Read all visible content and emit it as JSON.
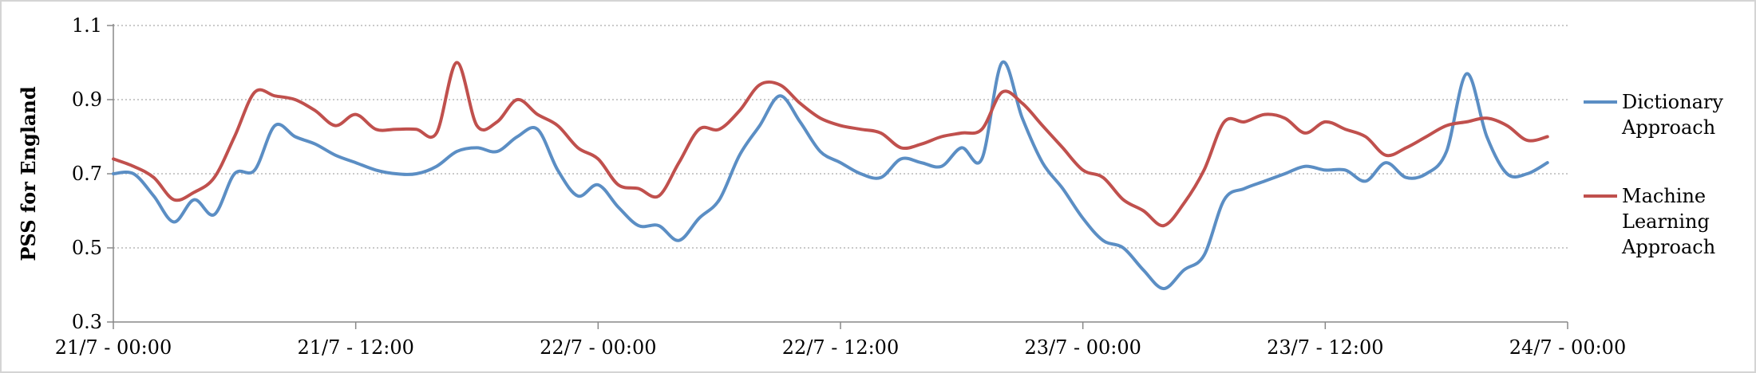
{
  "chart_data": {
    "type": "line",
    "title": "",
    "xlabel": "",
    "ylabel": "PSS for England",
    "ylim": [
      0.3,
      1.1
    ],
    "yticks": [
      "0.3",
      "0.5",
      "0.7",
      "0.9",
      "1.1"
    ],
    "ytick_values": [
      0.3,
      0.5,
      0.7,
      0.9,
      1.1
    ],
    "xlim": [
      0,
      72
    ],
    "xtick_hours": [
      0,
      12,
      24,
      36,
      48,
      60,
      72
    ],
    "xticks": [
      "21/7 - 00:00",
      "21/7 - 12:00",
      "22/7 - 00:00",
      "22/7 - 12:00",
      "23/7 - 00:00",
      "23/7 - 12:00",
      "24/7 - 00:00"
    ],
    "grid": "horizontal dotted",
    "legend_position": "right",
    "series": [
      {
        "name": "Dictionary\nApproach",
        "color": "#5b8ec4",
        "x": [
          0,
          1,
          2,
          3,
          4,
          5,
          6,
          7,
          8,
          9,
          10,
          11,
          12,
          13,
          14,
          15,
          16,
          17,
          18,
          19,
          20,
          21,
          22,
          23,
          24,
          25,
          26,
          27,
          28,
          29,
          30,
          31,
          32,
          33,
          34,
          35,
          36,
          37,
          38,
          39,
          40,
          41,
          42,
          43,
          44,
          45,
          46,
          47,
          48,
          49,
          50,
          51,
          52,
          53,
          54,
          55,
          56,
          57,
          58,
          59,
          60,
          61,
          62,
          63,
          64,
          65,
          66,
          67,
          68,
          69,
          70,
          71
        ],
        "values": [
          0.7,
          0.7,
          0.64,
          0.57,
          0.63,
          0.59,
          0.7,
          0.71,
          0.83,
          0.8,
          0.78,
          0.75,
          0.73,
          0.71,
          0.7,
          0.7,
          0.72,
          0.76,
          0.77,
          0.76,
          0.8,
          0.82,
          0.71,
          0.64,
          0.67,
          0.61,
          0.56,
          0.56,
          0.52,
          0.58,
          0.63,
          0.75,
          0.83,
          0.91,
          0.84,
          0.76,
          0.73,
          0.7,
          0.69,
          0.74,
          0.73,
          0.72,
          0.77,
          0.74,
          1.0,
          0.85,
          0.73,
          0.66,
          0.58,
          0.52,
          0.5,
          0.44,
          0.39,
          0.44,
          0.48,
          0.63,
          0.66,
          0.68,
          0.7,
          0.72,
          0.71,
          0.71,
          0.68,
          0.73,
          0.69,
          0.7,
          0.76,
          0.97,
          0.8,
          0.7,
          0.7,
          0.73
        ]
      },
      {
        "name": "Machine\nLearning\nApproach",
        "color": "#c0504d",
        "x": [
          0,
          1,
          2,
          3,
          4,
          5,
          6,
          7,
          8,
          9,
          10,
          11,
          12,
          13,
          14,
          15,
          16,
          17,
          18,
          19,
          20,
          21,
          22,
          23,
          24,
          25,
          26,
          27,
          28,
          29,
          30,
          31,
          32,
          33,
          34,
          35,
          36,
          37,
          38,
          39,
          40,
          41,
          42,
          43,
          44,
          45,
          46,
          47,
          48,
          49,
          50,
          51,
          52,
          53,
          54,
          55,
          56,
          57,
          58,
          59,
          60,
          61,
          62,
          63,
          64,
          65,
          66,
          67,
          68,
          69,
          70,
          71
        ],
        "values": [
          0.74,
          0.72,
          0.69,
          0.63,
          0.65,
          0.69,
          0.8,
          0.92,
          0.91,
          0.9,
          0.87,
          0.83,
          0.86,
          0.82,
          0.82,
          0.82,
          0.81,
          1.0,
          0.83,
          0.84,
          0.9,
          0.86,
          0.83,
          0.77,
          0.74,
          0.67,
          0.66,
          0.64,
          0.73,
          0.82,
          0.82,
          0.87,
          0.94,
          0.94,
          0.89,
          0.85,
          0.83,
          0.82,
          0.81,
          0.77,
          0.78,
          0.8,
          0.81,
          0.82,
          0.92,
          0.89,
          0.83,
          0.77,
          0.71,
          0.69,
          0.63,
          0.6,
          0.56,
          0.62,
          0.71,
          0.84,
          0.84,
          0.86,
          0.85,
          0.81,
          0.84,
          0.82,
          0.8,
          0.75,
          0.77,
          0.8,
          0.83,
          0.84,
          0.85,
          0.83,
          0.79,
          0.8
        ]
      }
    ]
  }
}
